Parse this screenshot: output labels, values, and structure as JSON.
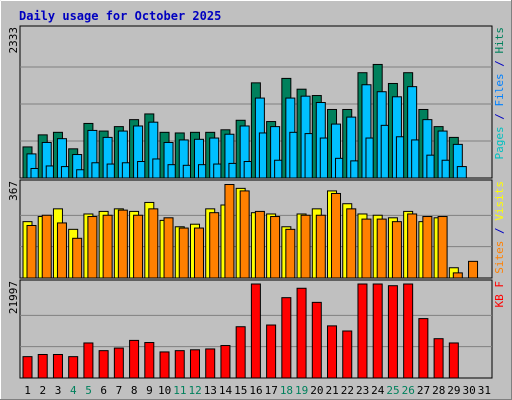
{
  "chart_data": {
    "type": "bar",
    "title": "Daily usage for October 2025",
    "categories": [
      "1",
      "2",
      "3",
      "4",
      "5",
      "6",
      "7",
      "8",
      "9",
      "10",
      "11",
      "12",
      "13",
      "14",
      "15",
      "16",
      "17",
      "18",
      "19",
      "20",
      "21",
      "22",
      "23",
      "24",
      "25",
      "26",
      "27",
      "28",
      "29",
      "30",
      "31"
    ],
    "weekend_days": [
      4,
      5,
      11,
      12,
      18,
      19,
      25,
      26
    ],
    "weekend_color": "#00805c",
    "title_color": "#0000c0",
    "panels": [
      {
        "id": "hits",
        "max_label": "2333",
        "ymax": 2333,
        "side_label": [
          {
            "text": "Pages",
            "color": "#00c0c0"
          },
          {
            "text": " / ",
            "color": "#0000c0"
          },
          {
            "text": "Files",
            "color": "#0080ff"
          },
          {
            "text": " / ",
            "color": "#0000c0"
          },
          {
            "text": "Hits",
            "color": "#00805c"
          }
        ],
        "series": [
          {
            "name": "Hits",
            "color": "#00805c",
            "values": [
              490,
              680,
              720,
              460,
              860,
              740,
              810,
              920,
              1010,
              720,
              710,
              720,
              720,
              760,
              910,
              1500,
              890,
              1570,
              1400,
              1300,
              1080,
              1080,
              1660,
              1790,
              1490,
              1660,
              1080,
              810,
              640,
              0,
              0
            ]
          },
          {
            "name": "Files",
            "color": "#00c0ff",
            "values": [
              380,
              560,
              620,
              370,
              750,
              640,
              740,
              820,
              880,
              560,
              600,
              610,
              630,
              690,
              820,
              1260,
              810,
              1260,
              1290,
              1190,
              850,
              960,
              1470,
              1360,
              1280,
              1440,
              920,
              740,
              530,
              0,
              0
            ]
          },
          {
            "name": "Pages",
            "color": "#00c0ff",
            "values": [
              150,
              190,
              180,
              130,
              240,
              220,
              240,
              260,
              300,
              210,
              200,
              210,
              220,
              230,
              260,
              710,
              280,
              720,
              700,
              630,
              310,
              270,
              630,
              830,
              650,
              600,
              360,
              280,
              180,
              0,
              0
            ]
          }
        ]
      },
      {
        "id": "visits",
        "max_label": "367",
        "ymax": 367,
        "side_label": [
          {
            "text": "Sites",
            "color": "#ff8000"
          },
          {
            "text": " / ",
            "color": "#0000c0"
          },
          {
            "text": "Visits",
            "color": "#ffff00"
          }
        ],
        "series": [
          {
            "name": "Visits",
            "color": "#ffff00",
            "values": [
              220,
              240,
              270,
              190,
              250,
              260,
              270,
              260,
              295,
              225,
              200,
              210,
              270,
              285,
              350,
              255,
              250,
              200,
              250,
              270,
              340,
              290,
              250,
              245,
              235,
              260,
              220,
              235,
              40,
              0,
              0
            ]
          },
          {
            "name": "Sites",
            "color": "#ff8000",
            "values": [
              205,
              245,
              215,
              155,
              240,
              245,
              265,
              245,
              270,
              235,
              195,
              195,
              255,
              365,
              340,
              260,
              240,
              190,
              245,
              245,
              330,
              270,
              230,
              230,
              220,
              250,
              240,
              240,
              20,
              65,
              0
            ]
          }
        ]
      },
      {
        "id": "kbytes",
        "max_label": "21997",
        "ymax": 21997,
        "side_label": [
          {
            "text": "KB F",
            "color": "#ff0000"
          }
        ],
        "series": [
          {
            "name": "KB F",
            "color": "#ff0000",
            "values": [
              5000,
              5500,
              5500,
              5000,
              8200,
              6400,
              7000,
              8800,
              8300,
              6100,
              6400,
              6600,
              6800,
              7600,
              12000,
              22000,
              12400,
              18800,
              21000,
              17700,
              12200,
              11000,
              22000,
              22400,
              21600,
              22400,
              13900,
              9200,
              8200,
              0,
              0
            ]
          }
        ]
      }
    ]
  }
}
